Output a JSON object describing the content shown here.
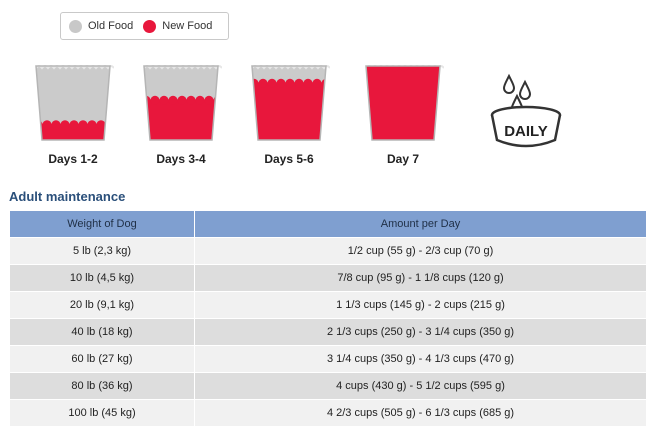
{
  "legend": {
    "items": [
      {
        "label": "Old Food",
        "color": "#c8c8c8"
      },
      {
        "label": "New Food",
        "color": "#e8173c"
      }
    ]
  },
  "transition": [
    {
      "label": "Days 1-2",
      "new_fraction": 0.22
    },
    {
      "label": "Days 3-4",
      "new_fraction": 0.55
    },
    {
      "label": "Days 5-6",
      "new_fraction": 0.78
    },
    {
      "label": "Day 7",
      "new_fraction": 1.0
    }
  ],
  "daily_badge": {
    "text": "DAILY",
    "icon": "water-bowl-icon"
  },
  "section_title": "Adult maintenance",
  "table": {
    "headers": [
      "Weight of Dog",
      "Amount per Day"
    ],
    "rows": [
      [
        "5 lb (2,3 kg)",
        "1/2 cup (55 g) - 2/3 cup (70 g)"
      ],
      [
        "10 lb (4,5 kg)",
        "7/8 cup (95 g) - 1 1/8 cups (120 g)"
      ],
      [
        "20 lb (9,1 kg)",
        "1 1/3 cups (145 g) - 2 cups (215 g)"
      ],
      [
        "40 lb (18 kg)",
        "2 1/3 cups (250 g) - 3 1/4 cups (350 g)"
      ],
      [
        "60 lb (27 kg)",
        "3 1/4 cups (350 g) - 4 1/3 cups (470 g)"
      ],
      [
        "80 lb (36 kg)",
        "4 cups (430 g) - 5 1/2 cups (595 g)"
      ],
      [
        "100 lb (45 kg)",
        "4 2/3 cups (505 g) - 6 1/3 cups (685 g)"
      ]
    ]
  }
}
